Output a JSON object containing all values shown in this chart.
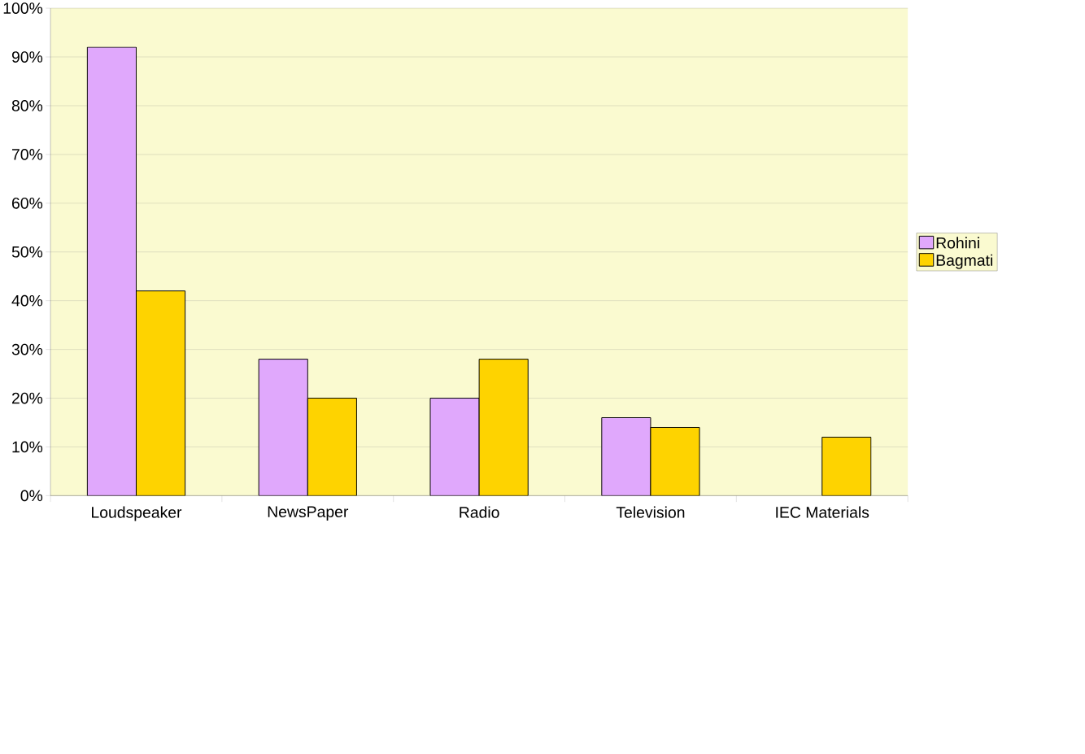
{
  "chart_data": {
    "type": "bar",
    "categories": [
      "Loudspeaker",
      "NewsPaper",
      "Radio",
      "Television",
      "IEC Materials"
    ],
    "series": [
      {
        "name": "Rohini",
        "color": "#e0a8fc",
        "values": [
          92,
          28,
          20,
          16,
          null
        ]
      },
      {
        "name": "Bagmati",
        "color": "#fed300",
        "values": [
          42,
          20,
          28,
          14,
          12
        ]
      }
    ],
    "ylim": [
      0,
      100
    ],
    "yticks": [
      {
        "value": 0,
        "label": "0%"
      },
      {
        "value": 10,
        "label": "10%"
      },
      {
        "value": 20,
        "label": "20%"
      },
      {
        "value": 30,
        "label": "30%"
      },
      {
        "value": 40,
        "label": "40%"
      },
      {
        "value": 50,
        "label": "50%"
      },
      {
        "value": 60,
        "label": "60%"
      },
      {
        "value": 70,
        "label": "70%"
      },
      {
        "value": 80,
        "label": "80%"
      },
      {
        "value": 90,
        "label": "90%"
      },
      {
        "value": 100,
        "label": "100%"
      }
    ],
    "grid": "y",
    "legend": "right"
  }
}
